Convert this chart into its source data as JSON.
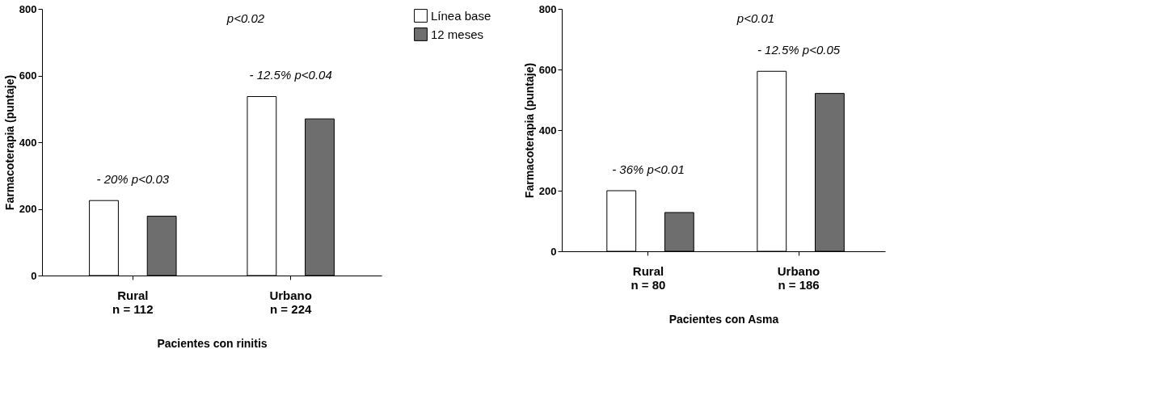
{
  "chart_data": [
    {
      "type": "bar",
      "categories": [
        "Rural\nn = 112",
        "Urbano\nn = 224"
      ],
      "xlabel": "Pacientes con rinitis",
      "ylabel": "Farmacoterapia (puntaje)",
      "ylim": [
        0,
        800
      ],
      "yticks": [
        0,
        200,
        400,
        600,
        800
      ],
      "grid": false,
      "legend": "top right",
      "series": [
        {
          "name": "Línea base",
          "color": "#ffffff",
          "values": [
            225,
            537
          ]
        },
        {
          "name": "12 meses",
          "color": "#6e6e6e",
          "values": [
            178,
            470
          ]
        }
      ],
      "annotations": [
        "- 20% p<0.03",
        "- 12.5% p<0.04",
        "p<0.02"
      ]
    },
    {
      "type": "bar",
      "categories": [
        "Rural\nn = 80",
        "Urbano\nn = 186"
      ],
      "xlabel": "Pacientes con Asma",
      "ylabel": "Farmacoterapia (puntaje)",
      "ylim": [
        0,
        800
      ],
      "yticks": [
        0,
        200,
        400,
        600,
        800
      ],
      "grid": false,
      "legend": false,
      "series": [
        {
          "name": "Línea base",
          "color": "#ffffff",
          "values": [
            200,
            594
          ]
        },
        {
          "name": "12 meses",
          "color": "#6e6e6e",
          "values": [
            128,
            521
          ]
        }
      ],
      "annotations": [
        "- 36% p<0.01",
        "- 12.5% p<0.05",
        "p<0.01"
      ]
    }
  ]
}
